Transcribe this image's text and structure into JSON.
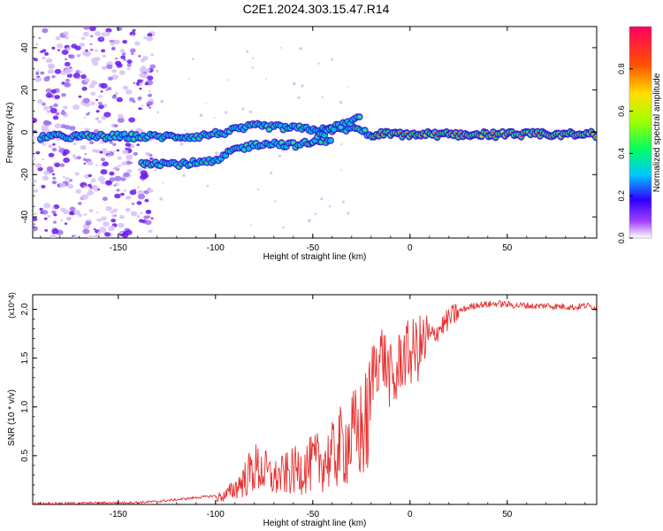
{
  "title": "C2E1.2024.303.15.47.R14",
  "chart_data": [
    {
      "type": "heatmap",
      "title": "",
      "xlabel": "Height of straight line (km)",
      "ylabel": "Frequency (Hz)",
      "xlim": [
        -194,
        96
      ],
      "ylim": [
        -50,
        50
      ],
      "x_ticks": [
        -150,
        -100,
        -50,
        0,
        50
      ],
      "y_ticks": [
        -40,
        -20,
        0,
        20,
        40
      ],
      "colorbar": {
        "label": "Normalized spectral amplitude",
        "range": [
          0,
          1
        ],
        "ticks": [
          0.0,
          0.2,
          0.4,
          0.6,
          0.8
        ]
      },
      "ridges": [
        {
          "name": "main",
          "points": [
            [
              -190,
              -2
            ],
            [
              -140,
              -2
            ],
            [
              -110,
              -2
            ],
            [
              -95,
              0
            ],
            [
              -80,
              3
            ],
            [
              -60,
              2
            ],
            [
              -45,
              1
            ],
            [
              -30,
              2
            ],
            [
              -20,
              -1
            ],
            [
              0,
              -1
            ],
            [
              50,
              -1
            ],
            [
              96,
              -1
            ]
          ]
        },
        {
          "name": "lower",
          "points": [
            [
              -138,
              -14
            ],
            [
              -120,
              -15
            ],
            [
              -100,
              -14
            ],
            [
              -90,
              -8
            ],
            [
              -75,
              -5
            ],
            [
              -60,
              -6
            ],
            [
              -50,
              -5
            ],
            [
              -40,
              -3
            ]
          ]
        },
        {
          "name": "upper",
          "points": [
            [
              -50,
              -4
            ],
            [
              -40,
              2
            ],
            [
              -30,
              5
            ],
            [
              -25,
              7
            ]
          ]
        }
      ],
      "noise_region": [
        -194,
        -140
      ]
    },
    {
      "type": "line",
      "title": "",
      "xlabel": "Height of straight line (km)",
      "ylabel": "SNR (10 * v/v)",
      "y_multiplier": "(x10^4)",
      "xlim": [
        -194,
        96
      ],
      "ylim": [
        0,
        2.15
      ],
      "x_ticks": [
        -150,
        -100,
        -50,
        0,
        50
      ],
      "y_ticks": [
        0.5,
        1.0,
        1.5,
        2.0
      ],
      "y_tick_labels": [
        "0.5",
        "1.0",
        "1.5",
        "2.0"
      ],
      "series": [
        {
          "name": "SNR",
          "color": "#e83030",
          "x": [
            -194,
            -180,
            -160,
            -140,
            -130,
            -120,
            -110,
            -100,
            -95,
            -90,
            -85,
            -80,
            -75,
            -70,
            -65,
            -60,
            -55,
            -50,
            -45,
            -40,
            -35,
            -30,
            -25,
            -22,
            -20,
            -18,
            -16,
            -14,
            -12,
            -10,
            -8,
            -5,
            0,
            5,
            10,
            15,
            20,
            25,
            30,
            35,
            40,
            45,
            50,
            55,
            60,
            65,
            70,
            75,
            80,
            85,
            90,
            96
          ],
          "y": [
            0.01,
            0.01,
            0.015,
            0.02,
            0.03,
            0.05,
            0.07,
            0.09,
            0.12,
            0.22,
            0.35,
            0.5,
            0.45,
            0.35,
            0.4,
            0.45,
            0.5,
            0.55,
            0.6,
            0.65,
            0.8,
            0.9,
            1.0,
            1.1,
            1.3,
            1.45,
            1.5,
            1.55,
            1.4,
            1.3,
            1.2,
            1.5,
            1.55,
            1.6,
            1.7,
            1.8,
            1.9,
            1.98,
            2.02,
            2.05,
            2.05,
            2.06,
            2.05,
            2.04,
            2.04,
            2.03,
            2.04,
            2.03,
            2.03,
            2.02,
            2.04,
            2.02
          ]
        }
      ]
    }
  ]
}
